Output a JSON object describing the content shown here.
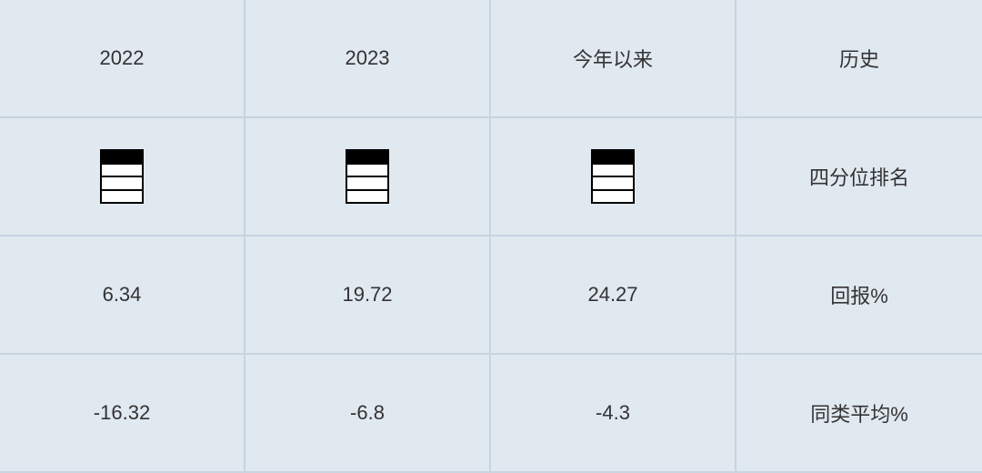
{
  "table": {
    "background_color": "#e0e8f0",
    "border_color": "#c8d4e0",
    "text_color": "#333333",
    "font_size": 22,
    "columns": 4,
    "rows": 4,
    "headers": {
      "col0": "2022",
      "col1": "2023",
      "col2": "今年以来",
      "col3": "历史"
    },
    "quartile_row": {
      "label": "四分位排名",
      "icon": {
        "type": "quartile-indicator",
        "width": 48,
        "height": 60,
        "border_color": "#000000",
        "fill_color": "#000000",
        "background_color": "#ffffff",
        "filled_segment": 0,
        "segments": 4
      }
    },
    "return_row": {
      "label": "回报%",
      "col0": "6.34",
      "col1": "19.72",
      "col2": "24.27"
    },
    "peer_avg_row": {
      "label": "同类平均%",
      "col0": "-16.32",
      "col1": "-6.8",
      "col2": "-4.3"
    }
  }
}
